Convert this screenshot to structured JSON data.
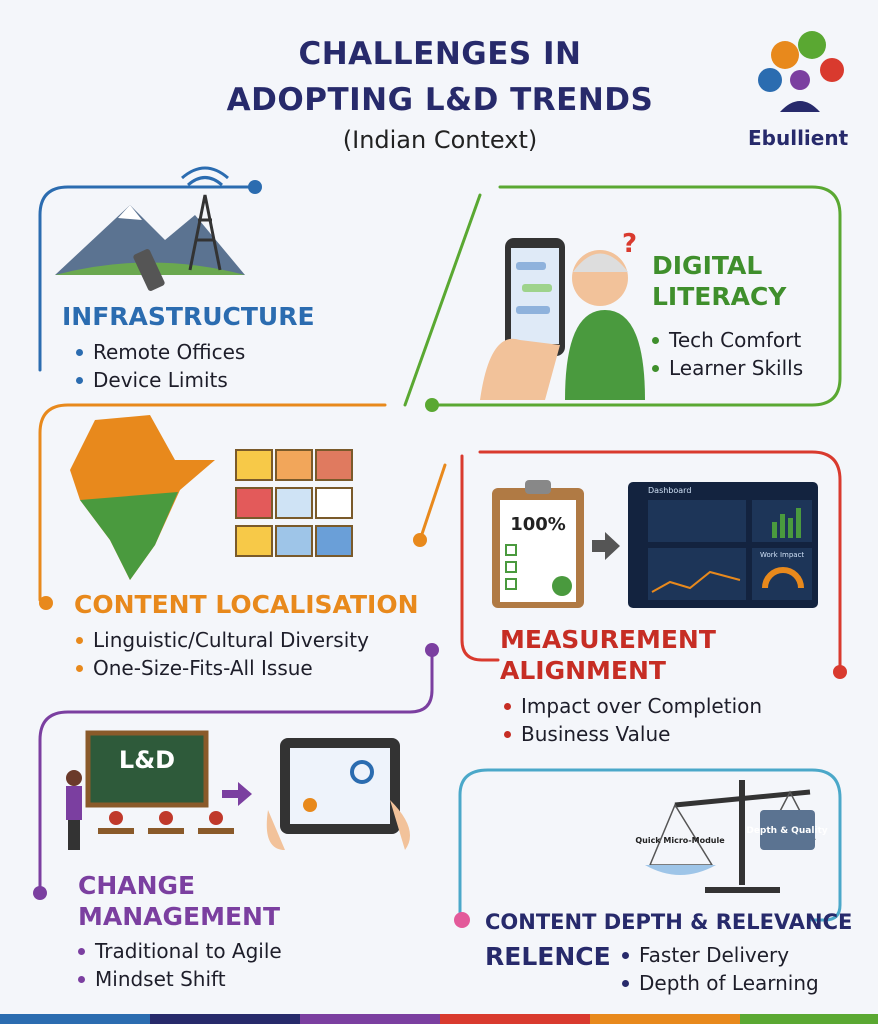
{
  "header": {
    "title_lines": [
      "CHALLENGES IN",
      "ADOPTING L&D TRENDS"
    ],
    "subtitle": "(Indian Context)",
    "brand": "Ebullient"
  },
  "panels": [
    {
      "title_lines": [
        "INFRASTRUCTURE"
      ],
      "bullets": [
        "Remote Offices",
        "Device Limits"
      ]
    },
    {
      "title_lines": [
        "DIGITAL",
        "LITERACY"
      ],
      "bullets": [
        "Tech Comfort",
        "Learner Skills"
      ]
    },
    {
      "title_lines": [
        "CONTENT LOCALISATION"
      ],
      "bullets": [
        "Linguistic/Cultural Diversity",
        "One-Size-Fits-All Issue"
      ]
    },
    {
      "title_lines": [
        "MEASUREMENT",
        "ALIGNMENT"
      ],
      "bullets": [
        "Impact over Completion",
        "Business Value"
      ]
    },
    {
      "title_lines": [
        "CHANGE",
        "MANAGEMENT"
      ],
      "bullets": [
        "Traditional to Agile",
        "Mindset Shift"
      ]
    },
    {
      "title_lines": [
        "CONTENT DEPTH & RELEVANCE",
        "RELENCE"
      ],
      "bullets": [
        "Faster Delivery",
        "Depth of Learning"
      ]
    }
  ],
  "illustrations": {
    "board": "L&D",
    "clipboard": "100%",
    "dashboard": "Dashboard",
    "work_impact": "Work Impact",
    "scale_left": "Quick Micro-Module",
    "scale_right": "Depth & Quality"
  }
}
